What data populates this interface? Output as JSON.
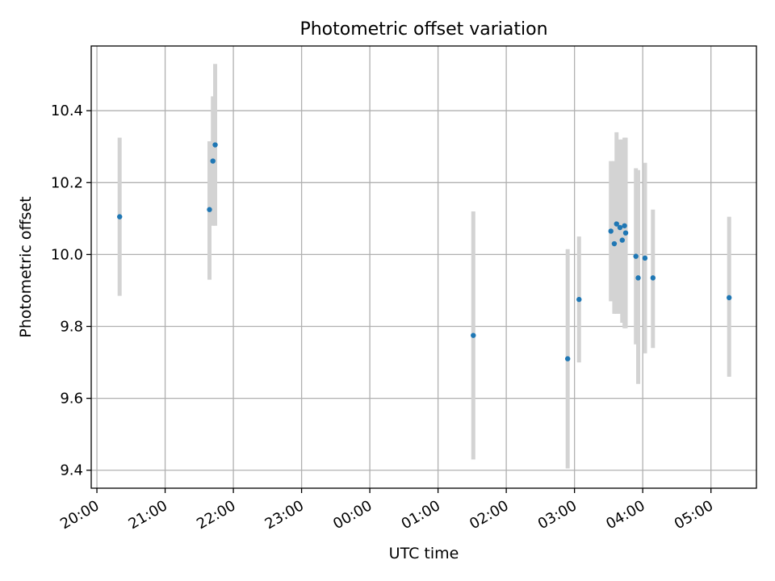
{
  "chart_data": {
    "type": "scatter",
    "title": "Photometric offset variation",
    "xlabel": "UTC time",
    "ylabel": "Photometric offset",
    "x_is_time": true,
    "xlim": [
      "19:55",
      "05:40"
    ],
    "ylim": [
      9.35,
      10.58
    ],
    "x_ticks": [
      "20:00",
      "21:00",
      "22:00",
      "23:00",
      "00:00",
      "01:00",
      "02:00",
      "03:00",
      "04:00",
      "05:00"
    ],
    "y_ticks": [
      "9.4",
      "9.6",
      "9.8",
      "10.0",
      "10.2",
      "10.4"
    ],
    "grid": true,
    "point_color": "#1f77b4",
    "errorbar_color": "#d3d3d3",
    "points": [
      {
        "time": "20:20",
        "y": 10.105,
        "err_low": 9.885,
        "err_high": 10.325
      },
      {
        "time": "21:39",
        "y": 10.125,
        "err_low": 9.93,
        "err_high": 10.315
      },
      {
        "time": "21:42",
        "y": 10.26,
        "err_low": 10.08,
        "err_high": 10.44
      },
      {
        "time": "21:44",
        "y": 10.305,
        "err_low": 10.08,
        "err_high": 10.53
      },
      {
        "time": "01:31",
        "y": 9.775,
        "err_low": 9.43,
        "err_high": 10.12
      },
      {
        "time": "02:54",
        "y": 9.71,
        "err_low": 9.405,
        "err_high": 10.015
      },
      {
        "time": "03:04",
        "y": 9.875,
        "err_low": 9.7,
        "err_high": 10.05
      },
      {
        "time": "03:32",
        "y": 10.065,
        "err_low": 9.87,
        "err_high": 10.26
      },
      {
        "time": "03:35",
        "y": 10.03,
        "err_low": 9.835,
        "err_high": 10.26
      },
      {
        "time": "03:37",
        "y": 10.085,
        "err_low": 9.835,
        "err_high": 10.34
      },
      {
        "time": "03:40",
        "y": 10.075,
        "err_low": 9.835,
        "err_high": 10.32
      },
      {
        "time": "03:42",
        "y": 10.04,
        "err_low": 9.81,
        "err_high": 10.32
      },
      {
        "time": "03:44",
        "y": 10.08,
        "err_low": 9.795,
        "err_high": 10.325
      },
      {
        "time": "03:45",
        "y": 10.06,
        "err_low": 9.795,
        "err_high": 10.325
      },
      {
        "time": "03:54",
        "y": 9.995,
        "err_low": 9.75,
        "err_high": 10.24
      },
      {
        "time": "03:56",
        "y": 9.935,
        "err_low": 9.64,
        "err_high": 10.235
      },
      {
        "time": "04:02",
        "y": 9.99,
        "err_low": 9.725,
        "err_high": 10.255
      },
      {
        "time": "04:09",
        "y": 9.935,
        "err_low": 9.74,
        "err_high": 10.125
      },
      {
        "time": "05:16",
        "y": 9.88,
        "err_low": 9.66,
        "err_high": 10.105
      }
    ]
  }
}
